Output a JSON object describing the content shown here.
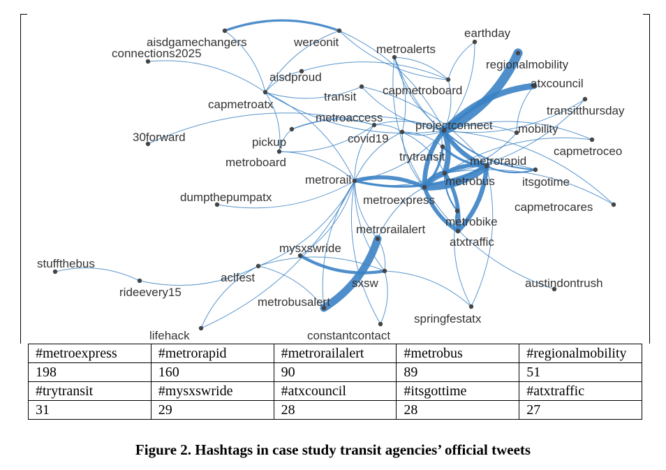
{
  "colors": {
    "edge": "#3b82c4",
    "node": "#444444",
    "label": "#333333"
  },
  "network": {
    "nodes": [
      {
        "id": "aisdgamechangers",
        "label": "aisdgamechangers"
      },
      {
        "id": "wereonit",
        "label": "wereonit"
      },
      {
        "id": "connections2025",
        "label": "connections2025"
      },
      {
        "id": "earthday",
        "label": "earthday"
      },
      {
        "id": "metroalerts",
        "label": "metroalerts"
      },
      {
        "id": "regionalmobility",
        "label": "regionalmobility"
      },
      {
        "id": "aisdproud",
        "label": "aisdproud"
      },
      {
        "id": "atxcouncil",
        "label": "atxcouncil"
      },
      {
        "id": "transit",
        "label": "transit"
      },
      {
        "id": "capmetroboard",
        "label": "capmetroboard"
      },
      {
        "id": "capmetroatx",
        "label": "capmetroatx"
      },
      {
        "id": "transitthursday",
        "label": "transitthursday"
      },
      {
        "id": "metroaccess",
        "label": "metroaccess"
      },
      {
        "id": "projectconnect",
        "label": "projectconnect"
      },
      {
        "id": "mobility",
        "label": "mobility"
      },
      {
        "id": "30forward",
        "label": "30forward"
      },
      {
        "id": "covid19",
        "label": "covid19"
      },
      {
        "id": "pickup",
        "label": "pickup"
      },
      {
        "id": "capmetroceo",
        "label": "capmetroceo"
      },
      {
        "id": "trytransit",
        "label": "trytransit"
      },
      {
        "id": "metrorapid",
        "label": "metrorapid"
      },
      {
        "id": "metroboard",
        "label": "metroboard"
      },
      {
        "id": "metrorail",
        "label": "metrorail"
      },
      {
        "id": "metrobus",
        "label": "metrobus"
      },
      {
        "id": "itsgotime",
        "label": "itsgotime"
      },
      {
        "id": "dumpthepumpatx",
        "label": "dumpthepumpatx"
      },
      {
        "id": "metroexpress",
        "label": "metroexpress"
      },
      {
        "id": "capmetrocares",
        "label": "capmetrocares"
      },
      {
        "id": "metrobike",
        "label": "metrobike"
      },
      {
        "id": "metrorailalert",
        "label": "metrorailalert"
      },
      {
        "id": "atxtraffic",
        "label": "atxtraffic"
      },
      {
        "id": "mysxswride",
        "label": "mysxswride"
      },
      {
        "id": "stuffthebus",
        "label": "stuffthebus"
      },
      {
        "id": "aclfest",
        "label": "aclfest"
      },
      {
        "id": "sxsw",
        "label": "sxsw"
      },
      {
        "id": "austindontrush",
        "label": "austindontrush"
      },
      {
        "id": "rideevery15",
        "label": "rideevery15"
      },
      {
        "id": "metrobusalert",
        "label": "metrobusalert"
      },
      {
        "id": "springfestatx",
        "label": "springfestatx"
      },
      {
        "id": "lifehack",
        "label": "lifehack"
      },
      {
        "id": "constantcontact",
        "label": "constantcontact"
      }
    ],
    "edges": [
      [
        "projectconnect",
        "regionalmobility",
        12
      ],
      [
        "projectconnect",
        "atxcouncil",
        8
      ],
      [
        "projectconnect",
        "metrorapid",
        6
      ],
      [
        "projectconnect",
        "metrobus",
        7
      ],
      [
        "projectconnect",
        "metroexpress",
        6
      ],
      [
        "metrorapid",
        "metroexpress",
        9
      ],
      [
        "metrorapid",
        "metrobus",
        5
      ],
      [
        "metrorapid",
        "atxtraffic",
        6
      ],
      [
        "metrobus",
        "metroexpress",
        8
      ],
      [
        "metrobus",
        "atxtraffic",
        5
      ],
      [
        "metroexpress",
        "atxtraffic",
        5
      ],
      [
        "metrorail",
        "metroexpress",
        5
      ],
      [
        "metrorail",
        "metrorapid",
        3
      ],
      [
        "metrorailalert",
        "metrobusalert",
        10
      ],
      [
        "mysxswride",
        "sxsw",
        4
      ],
      [
        "aisdgamechangers",
        "wereonit",
        3
      ],
      [
        "trytransit",
        "metrorapid",
        3
      ],
      [
        "trytransit",
        "metroexpress",
        3
      ],
      [
        "projectconnect",
        "itsgotime",
        2
      ],
      [
        "projectconnect",
        "mobility",
        1
      ],
      [
        "projectconnect",
        "transitthursday",
        1
      ],
      [
        "projectconnect",
        "capmetroceo",
        1
      ],
      [
        "projectconnect",
        "earthday",
        1
      ],
      [
        "projectconnect",
        "metroalerts",
        1
      ],
      [
        "projectconnect",
        "capmetroboard",
        1
      ],
      [
        "projectconnect",
        "covid19",
        1
      ],
      [
        "projectconnect",
        "metroaccess",
        1
      ],
      [
        "projectconnect",
        "metrorail",
        1
      ],
      [
        "projectconnect",
        "pickup",
        1
      ],
      [
        "projectconnect",
        "transit",
        1
      ],
      [
        "projectconnect",
        "wereonit",
        1
      ],
      [
        "projectconnect",
        "capmetrocares",
        1
      ],
      [
        "projectconnect",
        "trytransit",
        1
      ],
      [
        "projectconnect",
        "capmetroatx",
        1
      ],
      [
        "metroaccess",
        "pickup",
        1
      ],
      [
        "metroaccess",
        "covid19",
        1
      ],
      [
        "metroaccess",
        "30forward",
        1
      ],
      [
        "metroaccess",
        "metroboard",
        1
      ],
      [
        "metroaccess",
        "metrorail",
        1
      ],
      [
        "capmetroatx",
        "aisdproud",
        1
      ],
      [
        "capmetroatx",
        "connections2025",
        1
      ],
      [
        "capmetroatx",
        "wereonit",
        1
      ],
      [
        "capmetroatx",
        "aisdgamechangers",
        1
      ],
      [
        "capmetroatx",
        "metroboard",
        1
      ],
      [
        "capmetroatx",
        "transit",
        1
      ],
      [
        "capmetroatx",
        "metrorail",
        1
      ],
      [
        "capmetroboard",
        "metroalerts",
        1
      ],
      [
        "capmetroboard",
        "wereonit",
        1
      ],
      [
        "capmetroboard",
        "aisdproud",
        1
      ],
      [
        "capmetroboard",
        "earthday",
        1
      ],
      [
        "metrorail",
        "metroboard",
        1
      ],
      [
        "metrorail",
        "dumpthepumpatx",
        1
      ],
      [
        "metrorail",
        "metrorailalert",
        1
      ],
      [
        "metrorail",
        "mysxswride",
        1
      ],
      [
        "metrorail",
        "sxsw",
        1
      ],
      [
        "metrorail",
        "aclfest",
        1
      ],
      [
        "metrorail",
        "constantcontact",
        1
      ],
      [
        "metrorail",
        "covid19",
        1
      ],
      [
        "metrorail",
        "metrobus",
        1
      ],
      [
        "metrorail",
        "lifehack",
        1
      ],
      [
        "metroexpress",
        "metrorailalert",
        1
      ],
      [
        "metroexpress",
        "covid19",
        1
      ],
      [
        "metroexpress",
        "austindontrush",
        1
      ],
      [
        "metroexpress",
        "metroalerts",
        1
      ],
      [
        "metrobus",
        "covid19",
        1
      ],
      [
        "metrobus",
        "capmetroceo",
        1
      ],
      [
        "metrobus",
        "transitthursday",
        1
      ],
      [
        "metrobus",
        "capmetrocares",
        1
      ],
      [
        "metrobus",
        "mobility",
        1
      ],
      [
        "metrobus",
        "itsgotime",
        1
      ],
      [
        "metrorapid",
        "itsgotime",
        2
      ],
      [
        "metrorapid",
        "springfestatx",
        1
      ],
      [
        "metrobike",
        "atxtraffic",
        2
      ],
      [
        "metrobike",
        "metrobus",
        2
      ],
      [
        "metrobike",
        "springfestatx",
        1
      ],
      [
        "sxsw",
        "springfestatx",
        1
      ],
      [
        "sxsw",
        "aclfest",
        1
      ],
      [
        "sxsw",
        "constantcontact",
        1
      ],
      [
        "sxsw",
        "metrorailalert",
        1
      ],
      [
        "aclfest",
        "rideevery15",
        1
      ],
      [
        "aclfest",
        "lifehack",
        1
      ],
      [
        "aclfest",
        "metrobusalert",
        1
      ],
      [
        "rideevery15",
        "stuffthebus",
        1
      ],
      [
        "metrobusalert",
        "metrorail",
        1
      ],
      [
        "covid19",
        "metroalerts",
        1
      ],
      [
        "covid19",
        "trytransit",
        1
      ],
      [
        "pickup",
        "metroboard",
        1
      ],
      [
        "mobility",
        "atxcouncil",
        1
      ],
      [
        "metroalerts",
        "metrorapid",
        1
      ],
      [
        "transit",
        "metrorapid",
        1
      ]
    ]
  },
  "table": {
    "rows": [
      [
        "#metroexpress",
        "#metrorapid",
        "#metrorailalert",
        "#metrobus",
        "#regionalmobility"
      ],
      [
        "198",
        "160",
        "90",
        "89",
        "51"
      ],
      [
        "#trytransit",
        "#mysxswride",
        "#atxcouncil",
        "#itsgottime",
        "#atxtraffic"
      ],
      [
        "31",
        "29",
        "28",
        "28",
        "27"
      ]
    ]
  },
  "caption": "Figure 2. Hashtags in case study transit agencies’ official tweets"
}
